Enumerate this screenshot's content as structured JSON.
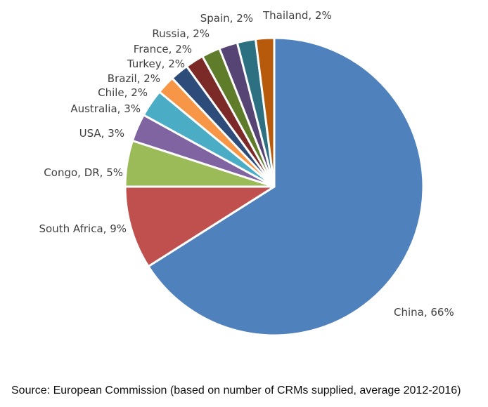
{
  "chart_data": {
    "type": "pie",
    "title": "",
    "categories": [
      "China",
      "South Africa",
      "Congo, DR",
      "USA",
      "Australia",
      "Chile",
      "Brazil",
      "Turkey",
      "France",
      "Russia",
      "Spain",
      "Thailand"
    ],
    "values": [
      66,
      9,
      5,
      3,
      3,
      2,
      2,
      2,
      2,
      2,
      2,
      2
    ],
    "unit": "%",
    "colors": [
      "#4F81BD",
      "#C0504D",
      "#9BBB59",
      "#8064A2",
      "#4BACC6",
      "#F79646",
      "#2E4C7A",
      "#7C2A28",
      "#5F7C2B",
      "#564474",
      "#2C7082",
      "#B85A0B"
    ],
    "point_labels": [
      "China, 66%",
      "South Africa, 9%",
      "Congo, DR, 5%",
      "USA, 3%",
      "Australia, 3%",
      "Chile, 2%",
      "Brazil, 2%",
      "Turkey, 2%",
      "France, 2%",
      "Russia, 2%",
      "Spain, 2%",
      "Thailand, 2%"
    ],
    "label_color": "#404040",
    "slice_border_color": "#ffffff",
    "start_angle_deg": 0,
    "direction": "clockwise",
    "legend": "none",
    "grid": false
  },
  "footer": {
    "source_text": "Source: European Commission (based on number of CRMs supplied, average 2012-2016)"
  }
}
